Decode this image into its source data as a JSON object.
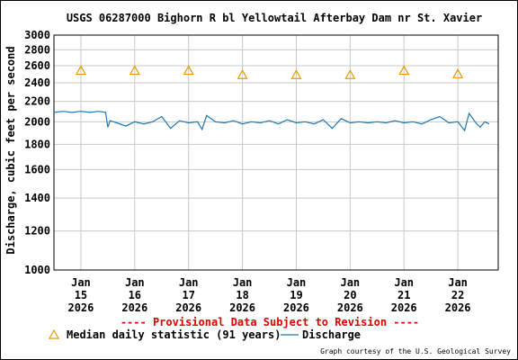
{
  "colors": {
    "discharge_line": "#1f77b4",
    "median_marker": "#e69a00",
    "provisional_text": "#e00000",
    "grid": "#c8c8c8",
    "axis": "#000000"
  },
  "provisional_notice": "---- Provisional Data Subject to Revision ----",
  "credit": "Graph courtesy of the U.S. Geological Survey",
  "chart_data": {
    "type": "line",
    "title": "USGS 06287000 Bighorn R bl Yellowtail Afterbay Dam nr St. Xavier",
    "xlabel": "",
    "ylabel": "Discharge, cubic feet per second",
    "y_scale": "log",
    "ylim": [
      1000,
      3000
    ],
    "xlim": [
      "2026-01-14T12:00",
      "2026-01-22T18:00"
    ],
    "y_ticks": [
      1000,
      1200,
      1400,
      1600,
      1800,
      2000,
      2200,
      2400,
      2600,
      2800,
      3000
    ],
    "x_ticks": [
      {
        "date": "2026-01-15",
        "month": "Jan",
        "day": "15",
        "year": "2026"
      },
      {
        "date": "2026-01-16",
        "month": "Jan",
        "day": "16",
        "year": "2026"
      },
      {
        "date": "2026-01-17",
        "month": "Jan",
        "day": "17",
        "year": "2026"
      },
      {
        "date": "2026-01-18",
        "month": "Jan",
        "day": "18",
        "year": "2026"
      },
      {
        "date": "2026-01-19",
        "month": "Jan",
        "day": "19",
        "year": "2026"
      },
      {
        "date": "2026-01-20",
        "month": "Jan",
        "day": "20",
        "year": "2026"
      },
      {
        "date": "2026-01-21",
        "month": "Jan",
        "day": "21",
        "year": "2026"
      },
      {
        "date": "2026-01-22",
        "month": "Jan",
        "day": "22",
        "year": "2026"
      }
    ],
    "grid": true,
    "legend_position": "bottom",
    "series": [
      {
        "name": "Median daily statistic (91 years)",
        "marker": "triangle",
        "points": [
          {
            "x": "2026-01-15",
            "y": 2540
          },
          {
            "x": "2026-01-16",
            "y": 2540
          },
          {
            "x": "2026-01-17",
            "y": 2540
          },
          {
            "x": "2026-01-18",
            "y": 2490
          },
          {
            "x": "2026-01-19",
            "y": 2490
          },
          {
            "x": "2026-01-20",
            "y": 2490
          },
          {
            "x": "2026-01-21",
            "y": 2540
          },
          {
            "x": "2026-01-22",
            "y": 2500
          }
        ]
      },
      {
        "name": "Discharge",
        "marker": "line",
        "points": [
          {
            "x": "2026-01-14T12:00",
            "y": 2090
          },
          {
            "x": "2026-01-14T16:00",
            "y": 2100
          },
          {
            "x": "2026-01-14T20:00",
            "y": 2090
          },
          {
            "x": "2026-01-15T00:00",
            "y": 2100
          },
          {
            "x": "2026-01-15T04:00",
            "y": 2090
          },
          {
            "x": "2026-01-15T08:00",
            "y": 2100
          },
          {
            "x": "2026-01-15T11:00",
            "y": 2090
          },
          {
            "x": "2026-01-15T12:00",
            "y": 1950
          },
          {
            "x": "2026-01-15T13:00",
            "y": 2010
          },
          {
            "x": "2026-01-15T16:00",
            "y": 1990
          },
          {
            "x": "2026-01-15T20:00",
            "y": 1960
          },
          {
            "x": "2026-01-16T00:00",
            "y": 2000
          },
          {
            "x": "2026-01-16T04:00",
            "y": 1980
          },
          {
            "x": "2026-01-16T08:00",
            "y": 2000
          },
          {
            "x": "2026-01-16T12:00",
            "y": 2050
          },
          {
            "x": "2026-01-16T16:00",
            "y": 1940
          },
          {
            "x": "2026-01-16T20:00",
            "y": 2010
          },
          {
            "x": "2026-01-17T00:00",
            "y": 1990
          },
          {
            "x": "2026-01-17T04:00",
            "y": 2000
          },
          {
            "x": "2026-01-17T06:00",
            "y": 1930
          },
          {
            "x": "2026-01-17T08:00",
            "y": 2060
          },
          {
            "x": "2026-01-17T12:00",
            "y": 2000
          },
          {
            "x": "2026-01-17T16:00",
            "y": 1990
          },
          {
            "x": "2026-01-17T20:00",
            "y": 2010
          },
          {
            "x": "2026-01-18T00:00",
            "y": 1980
          },
          {
            "x": "2026-01-18T04:00",
            "y": 2000
          },
          {
            "x": "2026-01-18T08:00",
            "y": 1990
          },
          {
            "x": "2026-01-18T12:00",
            "y": 2010
          },
          {
            "x": "2026-01-18T16:00",
            "y": 1980
          },
          {
            "x": "2026-01-18T20:00",
            "y": 2020
          },
          {
            "x": "2026-01-19T00:00",
            "y": 1990
          },
          {
            "x": "2026-01-19T04:00",
            "y": 2000
          },
          {
            "x": "2026-01-19T08:00",
            "y": 1980
          },
          {
            "x": "2026-01-19T12:00",
            "y": 2020
          },
          {
            "x": "2026-01-19T16:00",
            "y": 1940
          },
          {
            "x": "2026-01-19T20:00",
            "y": 2030
          },
          {
            "x": "2026-01-20T00:00",
            "y": 1990
          },
          {
            "x": "2026-01-20T04:00",
            "y": 2000
          },
          {
            "x": "2026-01-20T08:00",
            "y": 1990
          },
          {
            "x": "2026-01-20T12:00",
            "y": 2000
          },
          {
            "x": "2026-01-20T16:00",
            "y": 1990
          },
          {
            "x": "2026-01-20T20:00",
            "y": 2010
          },
          {
            "x": "2026-01-21T00:00",
            "y": 1990
          },
          {
            "x": "2026-01-21T04:00",
            "y": 2000
          },
          {
            "x": "2026-01-21T08:00",
            "y": 1980
          },
          {
            "x": "2026-01-21T12:00",
            "y": 2020
          },
          {
            "x": "2026-01-21T16:00",
            "y": 2050
          },
          {
            "x": "2026-01-21T20:00",
            "y": 1990
          },
          {
            "x": "2026-01-22T00:00",
            "y": 2000
          },
          {
            "x": "2026-01-22T03:00",
            "y": 1920
          },
          {
            "x": "2026-01-22T05:00",
            "y": 2080
          },
          {
            "x": "2026-01-22T08:00",
            "y": 1990
          },
          {
            "x": "2026-01-22T10:00",
            "y": 1950
          },
          {
            "x": "2026-01-22T12:00",
            "y": 2000
          },
          {
            "x": "2026-01-22T14:00",
            "y": 1980
          }
        ]
      }
    ]
  }
}
